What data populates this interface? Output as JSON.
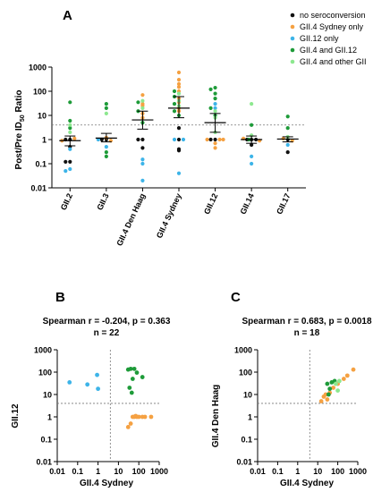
{
  "panels": [
    {
      "letter": "A",
      "chart_data": {
        "type": "scatter",
        "title": "",
        "ylabel": "Post/Pre ID50 Ratio",
        "ylabel_main": "Post/Pre ID",
        "ylabel_sub": "50",
        "ylabel_tail": " Ratio",
        "yscale": "log",
        "ylim": [
          0.01,
          1000
        ],
        "yticks": [
          "0.01",
          "0.1",
          "1",
          "10",
          "100",
          "1000"
        ],
        "categories": [
          "GII.2",
          "GII.3",
          "GII.4 Den Haag",
          "GII.4 Sydney",
          "GII.12",
          "GII.14",
          "GII.17"
        ],
        "threshold": 4,
        "summary": [
          {
            "category": "GII.2",
            "mean": 0.9,
            "low": 0.55,
            "high": 1.4
          },
          {
            "category": "GII.3",
            "mean": 1.15,
            "low": 0.8,
            "high": 1.8
          },
          {
            "category": "GII.4 Den Haag",
            "mean": 6.5,
            "low": 2.7,
            "high": 15
          },
          {
            "category": "GII.4 Sydney",
            "mean": 20,
            "low": 8,
            "high": 60
          },
          {
            "category": "GII.12",
            "mean": 5,
            "low": 2,
            "high": 12
          },
          {
            "category": "GII.14",
            "mean": 1,
            "low": 0.7,
            "high": 1.4
          },
          {
            "category": "GII.17",
            "mean": 1.05,
            "low": 0.8,
            "high": 1.3
          }
        ],
        "series": [
          {
            "name": "no seroconversion",
            "color": "#111111",
            "points": [
              [
                "GII.2",
                0.12
              ],
              [
                "GII.2",
                0.12
              ],
              [
                "GII.2",
                1
              ],
              [
                "GII.2",
                1
              ],
              [
                "GII.2",
                0.5
              ],
              [
                "GII.3",
                1
              ],
              [
                "GII.3",
                1
              ],
              [
                "GII.4 Den Haag",
                1
              ],
              [
                "GII.4 Den Haag",
                1
              ],
              [
                "GII.4 Den Haag",
                0.45
              ],
              [
                "GII.4 Sydney",
                3
              ],
              [
                "GII.4 Sydney",
                1
              ],
              [
                "GII.4 Sydney",
                0.35
              ],
              [
                "GII.4 Sydney",
                0.4
              ],
              [
                "GII.12",
                1
              ],
              [
                "GII.12",
                1
              ],
              [
                "GII.14",
                1
              ],
              [
                "GII.14",
                1
              ],
              [
                "GII.14",
                1
              ],
              [
                "GII.14",
                0.6
              ],
              [
                "GII.17",
                1
              ],
              [
                "GII.17",
                0.3
              ]
            ]
          },
          {
            "name": "GII.4 Sydney only",
            "color": "#f5a142",
            "points": [
              [
                "GII.2",
                1.1
              ],
              [
                "GII.2",
                0.9
              ],
              [
                "GII.3",
                1.2
              ],
              [
                "GII.3",
                0.9
              ],
              [
                "GII.4 Den Haag",
                70
              ],
              [
                "GII.4 Den Haag",
                30
              ],
              [
                "GII.4 Den Haag",
                12
              ],
              [
                "GII.4 Den Haag",
                8
              ],
              [
                "GII.4 Den Haag",
                25
              ],
              [
                "GII.4 Sydney",
                600
              ],
              [
                "GII.4 Sydney",
                300
              ],
              [
                "GII.4 Sydney",
                200
              ],
              [
                "GII.4 Sydney",
                150
              ],
              [
                "GII.4 Sydney",
                100
              ],
              [
                "GII.4 Sydney",
                50
              ],
              [
                "GII.4 Sydney",
                35
              ],
              [
                "GII.4 Sydney",
                20
              ],
              [
                "GII.4 Sydney",
                15
              ],
              [
                "GII.12",
                1
              ],
              [
                "GII.12",
                1
              ],
              [
                "GII.12",
                0.7
              ],
              [
                "GII.12",
                0.45
              ],
              [
                "GII.12",
                1
              ],
              [
                "GII.14",
                1.1
              ],
              [
                "GII.14",
                0.9
              ],
              [
                "GII.17",
                1.1
              ],
              [
                "GII.17",
                0.9
              ]
            ]
          },
          {
            "name": "GII.12 only",
            "color": "#3db4e8",
            "points": [
              [
                "GII.2",
                0.06
              ],
              [
                "GII.2",
                0.05
              ],
              [
                "GII.2",
                0.4
              ],
              [
                "GII.3",
                0.5
              ],
              [
                "GII.3",
                1
              ],
              [
                "GII.4 Den Haag",
                0.15
              ],
              [
                "GII.4 Den Haag",
                0.1
              ],
              [
                "GII.4 Den Haag",
                0.02
              ],
              [
                "GII.4 Sydney",
                0.04
              ],
              [
                "GII.4 Sydney",
                1
              ],
              [
                "GII.4 Sydney",
                1
              ],
              [
                "GII.12",
                30
              ],
              [
                "GII.12",
                20
              ],
              [
                "GII.14",
                0.2
              ],
              [
                "GII.14",
                0.1
              ],
              [
                "GII.17",
                0.6
              ]
            ]
          },
          {
            "name": "GII.4 and GII.12",
            "color": "#1e9b39",
            "points": [
              [
                "GII.2",
                35
              ],
              [
                "GII.2",
                6
              ],
              [
                "GII.2",
                3
              ],
              [
                "GII.3",
                30
              ],
              [
                "GII.3",
                20
              ],
              [
                "GII.3",
                0.3
              ],
              [
                "GII.3",
                0.2
              ],
              [
                "GII.4 Den Haag",
                35
              ],
              [
                "GII.4 Den Haag",
                15
              ],
              [
                "GII.4 Den Haag",
                5
              ],
              [
                "GII.4 Sydney",
                100
              ],
              [
                "GII.4 Sydney",
                60
              ],
              [
                "GII.4 Sydney",
                30
              ],
              [
                "GII.4 Sydney",
                15
              ],
              [
                "GII.4 Sydney",
                10
              ],
              [
                "GII.12",
                140
              ],
              [
                "GII.12",
                120
              ],
              [
                "GII.12",
                80
              ],
              [
                "GII.12",
                50
              ],
              [
                "GII.12",
                20
              ],
              [
                "GII.12",
                10
              ],
              [
                "GII.14",
                4
              ],
              [
                "GII.14",
                1
              ],
              [
                "GII.17",
                9
              ],
              [
                "GII.17",
                3
              ]
            ]
          },
          {
            "name": "GII.4 and other GII",
            "color": "#8de88f",
            "points": [
              [
                "GII.2",
                4
              ],
              [
                "GII.2",
                2
              ],
              [
                "GII.3",
                12
              ],
              [
                "GII.4 Den Haag",
                40
              ],
              [
                "GII.4 Den Haag",
                20
              ],
              [
                "GII.4 Sydney",
                80
              ],
              [
                "GII.4 Sydney",
                40
              ],
              [
                "GII.4 Sydney",
                25
              ],
              [
                "GII.12",
                15
              ],
              [
                "GII.12",
                8
              ],
              [
                "GII.12",
                2
              ],
              [
                "GII.14",
                30
              ],
              [
                "GII.14",
                1.5
              ],
              [
                "GII.17",
                1.3
              ]
            ]
          }
        ],
        "legend_position": "top-right"
      }
    },
    {
      "letter": "B",
      "chart_data": {
        "type": "scatter",
        "title": "Spearman r = -0.204, p = 0.363",
        "subtitle": "n = 22",
        "xlabel": "GII.4 Sydney",
        "ylabel": "GII.12",
        "xscale": "log",
        "yscale": "log",
        "xlim": [
          0.01,
          1000
        ],
        "ylim": [
          0.01,
          1000
        ],
        "xticks": [
          "0.01",
          "0.1",
          "1",
          "10",
          "100",
          "1000"
        ],
        "yticks": [
          "0.01",
          "0.1",
          "1",
          "10",
          "100",
          "1000"
        ],
        "threshold_x": 4,
        "threshold_y": 4,
        "series": [
          {
            "name": "GII.12 only",
            "color": "#3db4e8",
            "points": [
              [
                0.04,
                35
              ],
              [
                0.3,
                28
              ],
              [
                0.9,
                75
              ],
              [
                1.0,
                18
              ]
            ]
          },
          {
            "name": "GII.4 and GII.12",
            "color": "#1e9b39",
            "points": [
              [
                30,
                130
              ],
              [
                40,
                140
              ],
              [
                60,
                140
              ],
              [
                80,
                95
              ],
              [
                150,
                60
              ],
              [
                35,
                20
              ],
              [
                50,
                50
              ],
              [
                45,
                12
              ]
            ]
          },
          {
            "name": "GII.4 Sydney only",
            "color": "#f5a142",
            "points": [
              [
                30,
                0.35
              ],
              [
                40,
                0.5
              ],
              [
                50,
                1
              ],
              [
                60,
                1
              ],
              [
                70,
                1.1
              ],
              [
                80,
                1
              ],
              [
                100,
                1
              ],
              [
                150,
                1
              ],
              [
                200,
                1
              ],
              [
                400,
                1
              ]
            ]
          }
        ]
      }
    },
    {
      "letter": "C",
      "chart_data": {
        "type": "scatter",
        "title": "Spearman r = 0.683, p = 0.0018",
        "subtitle": "n = 18",
        "xlabel": "GII.4 Sydney",
        "ylabel": "GII.4 Den Haag",
        "xscale": "log",
        "yscale": "log",
        "xlim": [
          0.01,
          1000
        ],
        "ylim": [
          0.01,
          1000
        ],
        "xticks": [
          "0.01",
          "0.1",
          "1",
          "10",
          "100",
          "1000"
        ],
        "yticks": [
          "0.01",
          "0.1",
          "1",
          "10",
          "100",
          "1000"
        ],
        "threshold_x": 4,
        "threshold_y": 4,
        "series": [
          {
            "name": "GII.4 Sydney only",
            "color": "#f5a142",
            "points": [
              [
                15,
                5
              ],
              [
                20,
                8
              ],
              [
                25,
                10
              ],
              [
                40,
                12
              ],
              [
                60,
                20
              ],
              [
                100,
                30
              ],
              [
                200,
                50
              ],
              [
                300,
                70
              ],
              [
                600,
                130
              ],
              [
                30,
                6
              ]
            ]
          },
          {
            "name": "GII.4 and GII.12",
            "color": "#1e9b39",
            "points": [
              [
                30,
                30
              ],
              [
                50,
                35
              ],
              [
                70,
                40
              ],
              [
                40,
                18
              ],
              [
                35,
                10
              ]
            ]
          },
          {
            "name": "GII.4 and other GII",
            "color": "#8de88f",
            "points": [
              [
                80,
                30
              ],
              [
                120,
                40
              ],
              [
                100,
                15
              ]
            ]
          }
        ]
      }
    }
  ]
}
